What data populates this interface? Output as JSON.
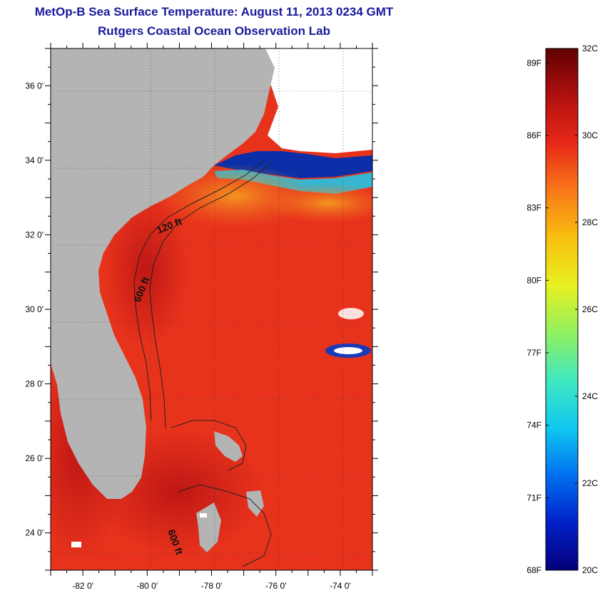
{
  "header": {
    "title": "MetOp-B Sea Surface Temperature:  August 11, 2013 0234 GMT",
    "subtitle": "Rutgers Coastal Ocean Observation Lab"
  },
  "map": {
    "lon_range": [
      -83,
      -73
    ],
    "lat_range": [
      23,
      37
    ],
    "lat_ticks": [
      {
        "value": 36,
        "label": "36 0'"
      },
      {
        "value": 34,
        "label": "34 0'"
      },
      {
        "value": 32,
        "label": "32 0'"
      },
      {
        "value": 30,
        "label": "30 0'"
      },
      {
        "value": 28,
        "label": "28 0'"
      },
      {
        "value": 26,
        "label": "26 0'"
      },
      {
        "value": 24,
        "label": "24 0'"
      }
    ],
    "lon_ticks": [
      {
        "value": -82,
        "label": "-82 0'"
      },
      {
        "value": -80,
        "label": "-80 0'"
      },
      {
        "value": -78,
        "label": "-78 0'"
      },
      {
        "value": -76,
        "label": "-76 0'"
      },
      {
        "value": -74,
        "label": "-74 0'"
      }
    ],
    "isobath_labels": [
      "120 ft",
      "600 ft",
      "600 ft"
    ],
    "colors": {
      "land": "#b4b4b4",
      "ocean_warm": "#e8311a",
      "ocean_hot": "#c8181c",
      "ocean_cool": "#f29a1e",
      "cold_water": "#0a2fa8",
      "cyan_water": "#22c4e6",
      "no_data": "#ffffff"
    }
  },
  "colorbar": {
    "range_c": [
      20,
      32
    ],
    "celsius_labels": [
      {
        "value": 32,
        "label": "32C"
      },
      {
        "value": 30,
        "label": "30C"
      },
      {
        "value": 28,
        "label": "28C"
      },
      {
        "value": 26,
        "label": "26C"
      },
      {
        "value": 24,
        "label": "24C"
      },
      {
        "value": 22,
        "label": "22C"
      },
      {
        "value": 20,
        "label": "20C"
      }
    ],
    "fahrenheit_labels": [
      {
        "value": 89,
        "label": "89F"
      },
      {
        "value": 86,
        "label": "86F"
      },
      {
        "value": 83,
        "label": "83F"
      },
      {
        "value": 80,
        "label": "80F"
      },
      {
        "value": 77,
        "label": "77F"
      },
      {
        "value": 74,
        "label": "74F"
      },
      {
        "value": 71,
        "label": "71F"
      },
      {
        "value": 68,
        "label": "68F"
      }
    ],
    "stops": [
      "#05007a",
      "#0020c8",
      "#0070f0",
      "#10c8f0",
      "#40e8c0",
      "#90f060",
      "#e8f020",
      "#f8c010",
      "#f87818",
      "#e82818",
      "#b01010",
      "#600000"
    ]
  }
}
